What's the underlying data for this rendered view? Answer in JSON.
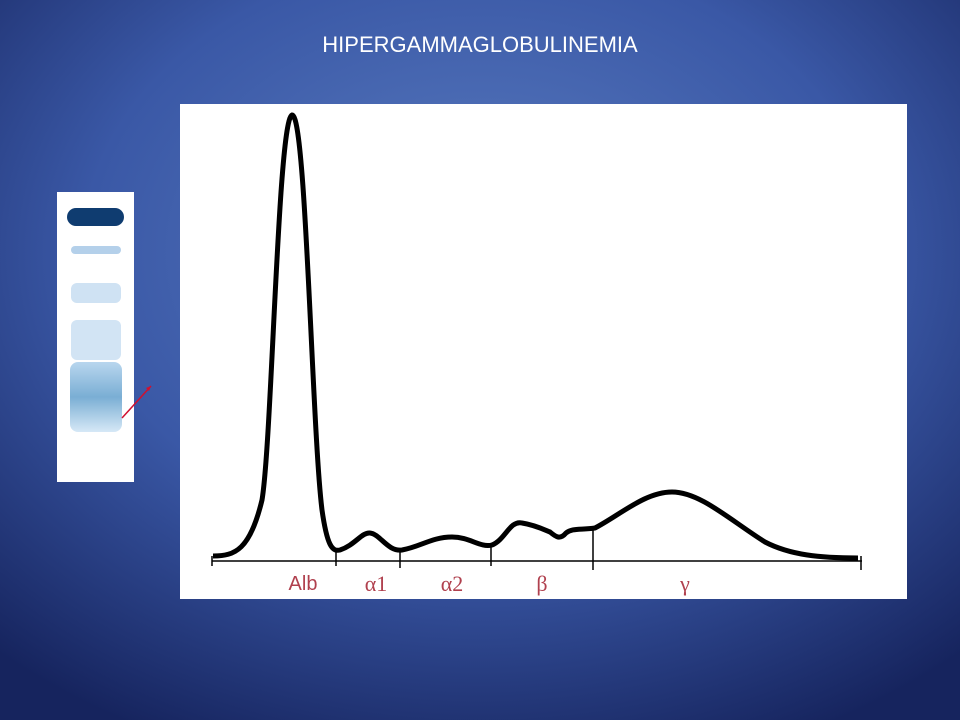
{
  "title": "HIPERGAMMAGLOBULINEMIA",
  "fractions": [
    "Alb",
    "α1",
    "α2",
    "β",
    "γ"
  ]
}
